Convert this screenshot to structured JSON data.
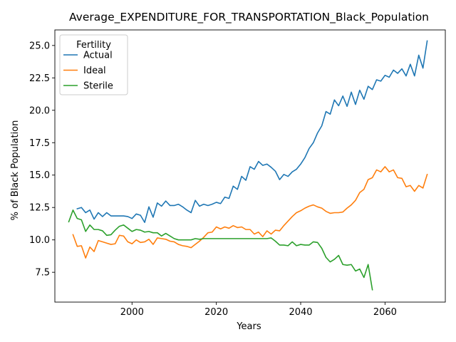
{
  "chart_data": {
    "type": "line",
    "title": "Average_EXPENDITURE_FOR_TRANSPORTATION_Black_Population",
    "xlabel": "Years",
    "ylabel": "% of Black Population",
    "xlim": [
      1981.7,
      2074.3
    ],
    "ylim": [
      5.2,
      26.2
    ],
    "xticks": [
      2000,
      2020,
      2040,
      2060
    ],
    "xtick_labels": [
      "2000",
      "2020",
      "2040",
      "2060"
    ],
    "yticks": [
      7.5,
      10.0,
      12.5,
      15.0,
      17.5,
      20.0,
      22.5,
      25.0
    ],
    "ytick_labels": [
      "7.5",
      "10.0",
      "12.5",
      "15.0",
      "17.5",
      "20.0",
      "22.5",
      "25.0"
    ],
    "grid": false,
    "legend": {
      "title": "Fertility",
      "placement": "top-left"
    },
    "series": [
      {
        "name": "Actual",
        "color": "#1f77b4",
        "x": [
          1987,
          1988,
          1989,
          1990,
          1991,
          1992,
          1993,
          1994,
          1995,
          1996,
          1997,
          1998,
          1999,
          2000,
          2001,
          2002,
          2003,
          2004,
          2005,
          2006,
          2007,
          2008,
          2009,
          2010,
          2011,
          2012,
          2013,
          2014,
          2015,
          2016,
          2017,
          2018,
          2019,
          2020,
          2021,
          2022,
          2023,
          2024,
          2025,
          2026,
          2027,
          2028,
          2029,
          2030,
          2031,
          2032,
          2033,
          2034,
          2035,
          2036,
          2037,
          2038,
          2039,
          2040,
          2041,
          2042,
          2043,
          2044,
          2045,
          2046,
          2047,
          2048,
          2049,
          2050,
          2051,
          2052,
          2053,
          2054,
          2055,
          2056,
          2057,
          2058,
          2059,
          2060,
          2061,
          2062,
          2063,
          2064,
          2065,
          2066,
          2067,
          2068,
          2069,
          2070
        ],
        "y": [
          12.4,
          12.5,
          12.1,
          12.3,
          11.6,
          12.1,
          11.8,
          12.1,
          11.85,
          11.85,
          11.85,
          11.85,
          11.8,
          11.65,
          12.0,
          11.9,
          11.35,
          12.55,
          11.75,
          12.85,
          12.6,
          13.0,
          12.65,
          12.65,
          12.75,
          12.55,
          12.3,
          12.1,
          13.05,
          12.6,
          12.75,
          12.65,
          12.75,
          12.9,
          12.8,
          13.3,
          13.2,
          14.15,
          13.9,
          14.9,
          14.6,
          15.65,
          15.45,
          16.05,
          15.75,
          15.85,
          15.6,
          15.3,
          14.65,
          15.05,
          14.9,
          15.25,
          15.45,
          15.85,
          16.35,
          17.05,
          17.5,
          18.25,
          18.8,
          19.9,
          19.7,
          20.8,
          20.35,
          21.1,
          20.3,
          21.4,
          20.45,
          21.55,
          20.85,
          21.85,
          21.6,
          22.35,
          22.25,
          22.7,
          22.55,
          23.1,
          22.85,
          23.2,
          22.65,
          23.55,
          22.65,
          24.25,
          23.25,
          25.35
        ]
      },
      {
        "name": "Ideal",
        "color": "#ff7f0e",
        "x": [
          1986,
          1987,
          1988,
          1989,
          1990,
          1991,
          1992,
          1993,
          1994,
          1995,
          1996,
          1997,
          1998,
          1999,
          2000,
          2001,
          2002,
          2003,
          2004,
          2005,
          2006,
          2007,
          2008,
          2009,
          2010,
          2011,
          2012,
          2013,
          2014,
          2015,
          2016,
          2017,
          2018,
          2019,
          2020,
          2021,
          2022,
          2023,
          2024,
          2025,
          2026,
          2027,
          2028,
          2029,
          2030,
          2031,
          2032,
          2033,
          2034,
          2035,
          2036,
          2037,
          2038,
          2039,
          2040,
          2041,
          2042,
          2043,
          2044,
          2045,
          2046,
          2047,
          2048,
          2049,
          2050,
          2051,
          2052,
          2053,
          2054,
          2055,
          2056,
          2057,
          2058,
          2059,
          2060,
          2061,
          2062,
          2063,
          2064,
          2065,
          2066,
          2067,
          2068,
          2069,
          2070
        ],
        "y": [
          10.4,
          9.5,
          9.55,
          8.6,
          9.45,
          9.1,
          9.95,
          9.85,
          9.75,
          9.65,
          9.7,
          10.35,
          10.3,
          9.85,
          9.7,
          10.0,
          9.8,
          9.85,
          10.05,
          9.65,
          10.15,
          10.1,
          10.05,
          9.9,
          9.85,
          9.65,
          9.55,
          9.5,
          9.4,
          9.65,
          9.9,
          10.2,
          10.55,
          10.6,
          11.0,
          10.85,
          11.0,
          10.9,
          11.1,
          10.95,
          11.0,
          10.8,
          10.8,
          10.45,
          10.6,
          10.25,
          10.7,
          10.45,
          10.75,
          10.7,
          11.1,
          11.45,
          11.8,
          12.1,
          12.25,
          12.45,
          12.6,
          12.7,
          12.55,
          12.45,
          12.2,
          12.05,
          12.1,
          12.1,
          12.15,
          12.45,
          12.7,
          13.05,
          13.65,
          13.9,
          14.65,
          14.8,
          15.4,
          15.25,
          15.65,
          15.25,
          15.4,
          14.8,
          14.75,
          14.1,
          14.2,
          13.75,
          14.2,
          14.0,
          15.05
        ]
      },
      {
        "name": "Sterile",
        "color": "#2ca02c",
        "x": [
          1985,
          1986,
          1987,
          1988,
          1989,
          1990,
          1991,
          1992,
          1993,
          1994,
          1995,
          1996,
          1997,
          1998,
          1999,
          2000,
          2001,
          2002,
          2003,
          2004,
          2005,
          2006,
          2007,
          2008,
          2009,
          2010,
          2011,
          2012,
          2013,
          2014,
          2015,
          2016,
          2017,
          2018,
          2019,
          2020,
          2021,
          2022,
          2023,
          2024,
          2025,
          2026,
          2027,
          2028,
          2029,
          2030,
          2031,
          2032,
          2033,
          2034,
          2035,
          2036,
          2037,
          2038,
          2039,
          2040,
          2041,
          2042,
          2043,
          2044,
          2045,
          2046,
          2047,
          2048,
          2049,
          2050,
          2051,
          2052,
          2053,
          2054,
          2055,
          2056,
          2057
        ],
        "y": [
          11.4,
          12.3,
          11.65,
          11.55,
          10.65,
          11.15,
          10.8,
          10.8,
          10.7,
          10.35,
          10.4,
          10.75,
          11.05,
          11.15,
          10.9,
          10.65,
          10.8,
          10.75,
          10.6,
          10.65,
          10.55,
          10.55,
          10.3,
          10.5,
          10.3,
          10.1,
          10.0,
          10.0,
          10.0,
          10.0,
          10.1,
          10.05,
          10.1,
          10.1,
          10.1,
          10.1,
          10.1,
          10.1,
          10.1,
          10.1,
          10.1,
          10.1,
          10.1,
          10.1,
          10.1,
          10.1,
          10.1,
          10.1,
          10.15,
          9.9,
          9.6,
          9.6,
          9.55,
          9.85,
          9.55,
          9.65,
          9.6,
          9.6,
          9.85,
          9.8,
          9.35,
          8.65,
          8.3,
          8.5,
          8.8,
          8.1,
          8.05,
          8.1,
          7.6,
          7.75,
          7.1,
          8.1,
          6.15
        ]
      }
    ]
  }
}
